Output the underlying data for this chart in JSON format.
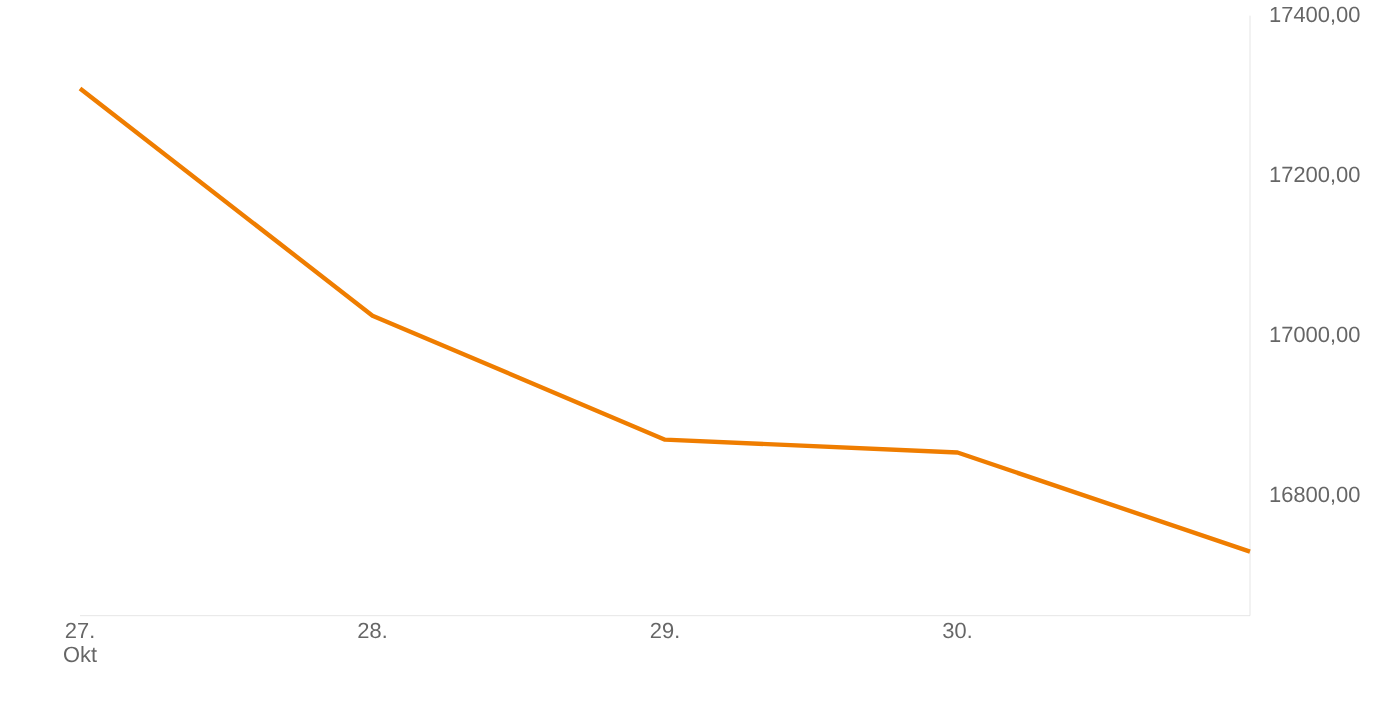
{
  "chart_data": {
    "type": "line",
    "categories": [
      "27. Okt",
      "28.",
      "29.",
      "30.",
      null
    ],
    "series": [
      {
        "color": "#ef7d00",
        "values": [
          17309,
          17025,
          16870,
          16854,
          16730
        ]
      }
    ],
    "ylim": [
      16650,
      17400
    ],
    "yticks": [
      {
        "value": 16800,
        "label": "16800,00"
      },
      {
        "value": 17000,
        "label": "17000,00"
      },
      {
        "value": 17200,
        "label": "17200,00"
      },
      {
        "value": 17400,
        "label": "17400,00"
      }
    ],
    "grid": false,
    "marker": "none",
    "line_style": "solid"
  }
}
